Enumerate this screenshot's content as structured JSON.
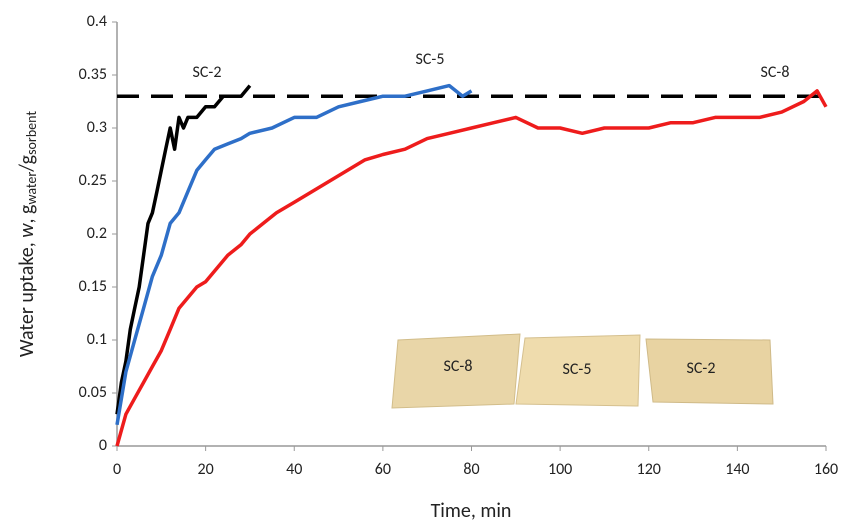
{
  "chart_data": {
    "type": "line",
    "x_label": "Time, min",
    "y_label_parts": [
      "Water uptake, ",
      "w",
      ", g",
      "water",
      "/g",
      "sorbent"
    ],
    "xlim": [
      0,
      160
    ],
    "xticks": [
      0,
      20,
      40,
      60,
      80,
      100,
      120,
      140,
      160
    ],
    "ylim": [
      0,
      0.4
    ],
    "yticks": [
      0,
      0.05,
      0.1,
      0.15,
      0.2,
      0.25,
      0.3,
      0.35,
      0.4
    ],
    "reference_line": 0.33,
    "series": [
      {
        "name": "SC-2",
        "color": "#000000",
        "x": [
          0,
          1,
          2,
          3,
          4,
          5,
          6,
          7,
          8,
          9,
          10,
          11,
          12,
          13,
          14,
          15,
          16,
          17,
          18,
          20,
          22,
          24,
          26,
          28,
          30
        ],
        "values": [
          0.03,
          0.06,
          0.08,
          0.11,
          0.13,
          0.15,
          0.18,
          0.21,
          0.22,
          0.24,
          0.26,
          0.28,
          0.3,
          0.28,
          0.31,
          0.3,
          0.31,
          0.31,
          0.31,
          0.32,
          0.32,
          0.33,
          0.33,
          0.33,
          0.34
        ]
      },
      {
        "name": "SC-5",
        "color": "#2e6fc8",
        "x": [
          0,
          2,
          4,
          6,
          8,
          10,
          12,
          14,
          16,
          18,
          20,
          22,
          25,
          28,
          30,
          35,
          40,
          45,
          50,
          55,
          60,
          65,
          70,
          75,
          78,
          80
        ],
        "values": [
          0.02,
          0.07,
          0.1,
          0.13,
          0.16,
          0.18,
          0.21,
          0.22,
          0.24,
          0.26,
          0.27,
          0.28,
          0.285,
          0.29,
          0.295,
          0.3,
          0.31,
          0.31,
          0.32,
          0.325,
          0.33,
          0.33,
          0.335,
          0.34,
          0.33,
          0.335
        ]
      },
      {
        "name": "SC-8",
        "color": "#ee1c1c",
        "x": [
          0,
          2,
          4,
          6,
          8,
          10,
          12,
          14,
          16,
          18,
          20,
          22,
          25,
          28,
          30,
          33,
          36,
          40,
          44,
          48,
          52,
          56,
          60,
          65,
          70,
          75,
          80,
          85,
          90,
          95,
          100,
          105,
          110,
          115,
          120,
          125,
          130,
          135,
          140,
          145,
          150,
          155,
          158,
          160
        ],
        "values": [
          0,
          0.03,
          0.045,
          0.06,
          0.075,
          0.09,
          0.11,
          0.13,
          0.14,
          0.15,
          0.155,
          0.165,
          0.18,
          0.19,
          0.2,
          0.21,
          0.22,
          0.23,
          0.24,
          0.25,
          0.26,
          0.27,
          0.275,
          0.28,
          0.29,
          0.295,
          0.3,
          0.305,
          0.31,
          0.3,
          0.3,
          0.295,
          0.3,
          0.3,
          0.3,
          0.305,
          0.305,
          0.31,
          0.31,
          0.31,
          0.315,
          0.325,
          0.335,
          0.32
        ]
      }
    ],
    "inset_labels": [
      "SC-8",
      "SC-5",
      "SC-2"
    ]
  }
}
